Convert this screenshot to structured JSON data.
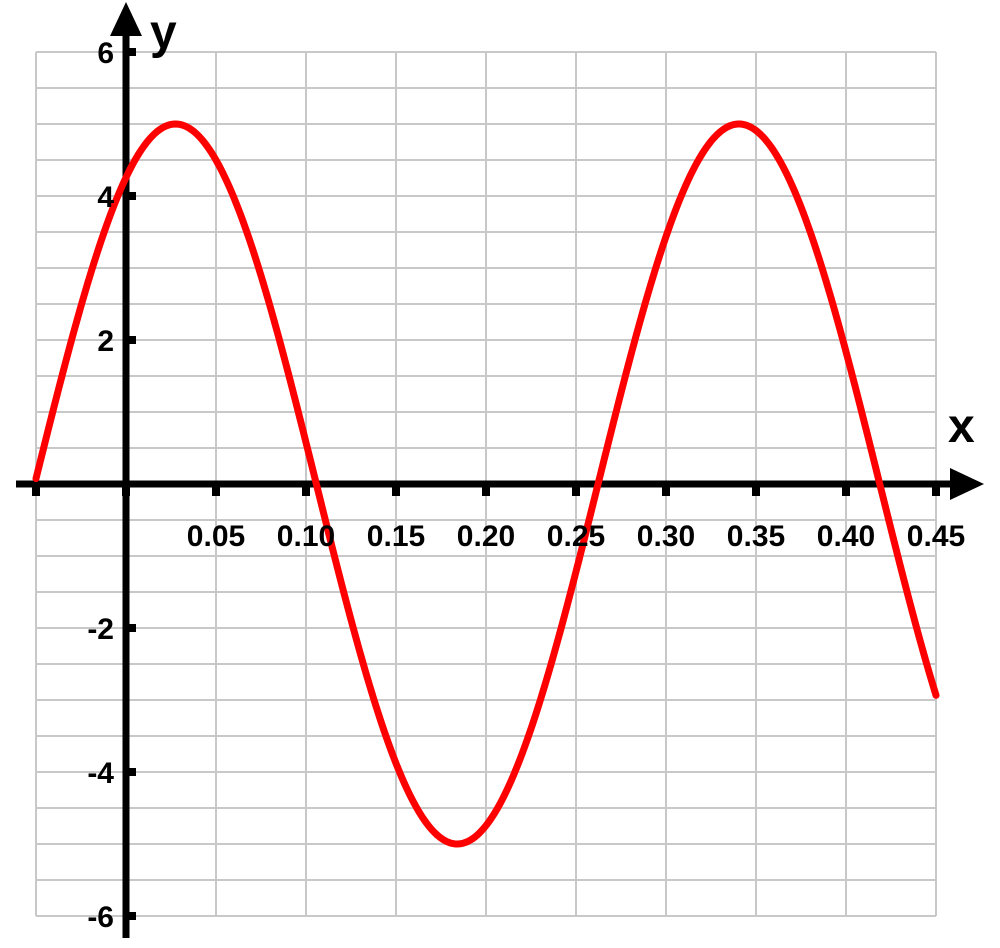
{
  "chart_data": {
    "type": "line",
    "title": "",
    "xlabel": "x",
    "ylabel": "y",
    "xlim": [
      -0.05,
      0.45
    ],
    "ylim": [
      -6,
      6
    ],
    "x_minor_step": 0.05,
    "y_minor_step": 0.5,
    "grid": true,
    "legend": "none",
    "x_ticks": [
      {
        "value": 0.05,
        "label": "0.05"
      },
      {
        "value": 0.1,
        "label": "0.10"
      },
      {
        "value": 0.15,
        "label": "0.15"
      },
      {
        "value": 0.2,
        "label": "0.20"
      },
      {
        "value": 0.25,
        "label": "0.25"
      },
      {
        "value": 0.3,
        "label": "0.30"
      },
      {
        "value": 0.35,
        "label": "0.35"
      },
      {
        "value": 0.4,
        "label": "0.40"
      },
      {
        "value": 0.45,
        "label": "0.45"
      }
    ],
    "y_ticks": [
      {
        "value": 6,
        "label": "6"
      },
      {
        "value": 4,
        "label": "4"
      },
      {
        "value": 2,
        "label": "2"
      },
      {
        "value": -2,
        "label": "-2"
      },
      {
        "value": -4,
        "label": "-4"
      },
      {
        "value": -6,
        "label": "-6"
      }
    ],
    "series": [
      {
        "color": "#ff0000",
        "function": "sinusoid",
        "amplitude": 5,
        "period": 0.313,
        "peak_x": 0.0275,
        "x": [
          -0.05,
          -0.025,
          0,
          0.0275,
          0.05,
          0.075,
          0.106,
          0.15,
          0.184,
          0.22,
          0.262,
          0.3,
          0.341,
          0.37,
          0.419,
          0.45
        ],
        "y": [
          0.2,
          2.9,
          4.6,
          5.0,
          4.3,
          2.5,
          0.0,
          -3.5,
          -5.0,
          -3.9,
          0.0,
          3.7,
          5.0,
          4.1,
          0.0,
          -3.1
        ]
      }
    ]
  }
}
